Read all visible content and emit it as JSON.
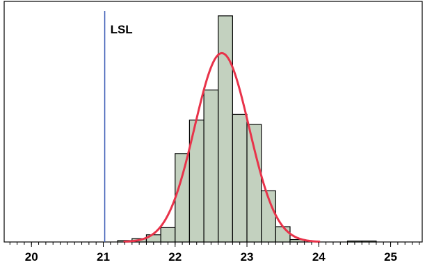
{
  "chart_data": {
    "type": "bar",
    "title": "",
    "xlabel": "",
    "ylabel": "",
    "xlim": [
      19.62,
      25.44
    ],
    "ylim": [
      0,
      48
    ],
    "x_ticks": [
      {
        "value": 20,
        "label": "20"
      },
      {
        "value": 21,
        "label": "21"
      },
      {
        "value": 22,
        "label": "22"
      },
      {
        "value": 23,
        "label": "23"
      },
      {
        "value": 24,
        "label": "24"
      },
      {
        "value": 25,
        "label": "25"
      }
    ],
    "minor_tick_step": 0.1,
    "bin_width": 0.2,
    "bins": [
      {
        "start": 21.2,
        "count": 0.3
      },
      {
        "start": 21.4,
        "count": 0.7
      },
      {
        "start": 21.6,
        "count": 1.5
      },
      {
        "start": 21.8,
        "count": 3.0
      },
      {
        "start": 22.0,
        "count": 18.5
      },
      {
        "start": 22.2,
        "count": 25.5
      },
      {
        "start": 22.4,
        "count": 31.8
      },
      {
        "start": 22.6,
        "count": 47.3
      },
      {
        "start": 22.8,
        "count": 26.7
      },
      {
        "start": 23.0,
        "count": 24.6
      },
      {
        "start": 23.2,
        "count": 10.7
      },
      {
        "start": 23.4,
        "count": 3.2
      },
      {
        "start": 23.6,
        "count": 0.5
      },
      {
        "start": 24.4,
        "count": 0.2
      },
      {
        "start": 24.6,
        "count": 0.2
      }
    ],
    "fit_curve": {
      "type": "normal",
      "mean": 22.65,
      "sd": 0.38,
      "peak": 39.5,
      "color": "#e8334a"
    },
    "spec_limits": [
      {
        "label": "LSL",
        "value": 21.02,
        "color": "#3b5bb5"
      }
    ],
    "grid": false,
    "bar_color": "#c3d1bf"
  }
}
